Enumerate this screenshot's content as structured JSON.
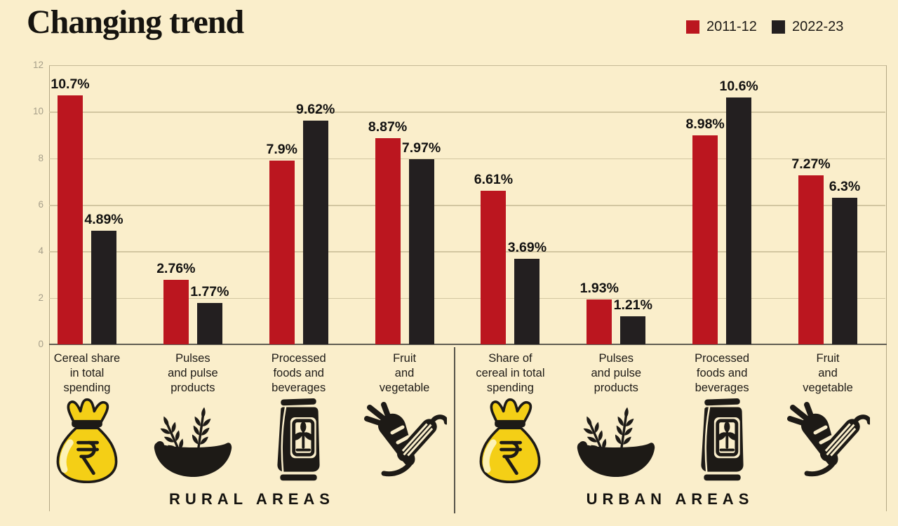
{
  "title": "Changing trend",
  "legend": [
    {
      "label": "2011-12",
      "color": "#bb161f"
    },
    {
      "label": "2022-23",
      "color": "#231f20"
    }
  ],
  "colors": {
    "background": "#faeecb",
    "bar_2011_12": "#bb161f",
    "bar_2022_23": "#231f20",
    "grid_line": "#d2c6a1",
    "axis_line": "#5f5c52",
    "tick_text": "#a59e89",
    "text": "#1d1a16",
    "money_bag_yellow": "#f4cf16"
  },
  "chart_data": {
    "type": "bar",
    "title": "Changing trend",
    "xlabel": "",
    "ylabel": "",
    "ylim": [
      0,
      12
    ],
    "ytick_step": 2,
    "yticks": [
      0,
      2,
      4,
      6,
      8,
      10,
      12
    ],
    "grid": true,
    "legend_position": "top-right",
    "series_names": [
      "2011-12",
      "2022-23"
    ],
    "series_colors": [
      "#bb161f",
      "#231f20"
    ],
    "sections": [
      {
        "name": "RURAL AREAS",
        "groups": [
          {
            "label_lines": [
              "Cereal share",
              "in total",
              "spending"
            ],
            "icon": "money-bag-icon",
            "values": [
              10.7,
              4.89
            ],
            "value_labels": [
              "10.7%",
              "4.89%"
            ]
          },
          {
            "label_lines": [
              "Pulses",
              "and pulse",
              "products"
            ],
            "icon": "grain-bowl-icon",
            "values": [
              2.76,
              1.77
            ],
            "value_labels": [
              "2.76%",
              "1.77%"
            ]
          },
          {
            "label_lines": [
              "Processed",
              "foods and",
              "beverages"
            ],
            "icon": "packaged-food-icon",
            "values": [
              7.9,
              9.62
            ],
            "value_labels": [
              "7.9%",
              "9.62%"
            ]
          },
          {
            "label_lines": [
              "Fruit",
              "and",
              "vegetable"
            ],
            "icon": "fruit-vegetable-icon",
            "values": [
              8.87,
              7.97
            ],
            "value_labels": [
              "8.87%",
              "7.97%"
            ]
          }
        ]
      },
      {
        "name": "URBAN AREAS",
        "groups": [
          {
            "label_lines": [
              "Share of",
              "cereal in total",
              "spending"
            ],
            "icon": "money-bag-icon",
            "values": [
              6.61,
              3.69
            ],
            "value_labels": [
              "6.61%",
              "3.69%"
            ]
          },
          {
            "label_lines": [
              "Pulses",
              "and pulse",
              "products"
            ],
            "icon": "grain-bowl-icon",
            "values": [
              1.93,
              1.21
            ],
            "value_labels": [
              "1.93%",
              "1.21%"
            ]
          },
          {
            "label_lines": [
              "Processed",
              "foods and",
              "beverages"
            ],
            "icon": "packaged-food-icon",
            "values": [
              8.98,
              10.6
            ],
            "value_labels": [
              "8.98%",
              "10.6%"
            ]
          },
          {
            "label_lines": [
              "Fruit",
              "and",
              "vegetable"
            ],
            "icon": "fruit-vegetable-icon",
            "values": [
              7.27,
              6.3
            ],
            "value_labels": [
              "7.27%",
              "6.3%"
            ]
          }
        ]
      }
    ]
  }
}
